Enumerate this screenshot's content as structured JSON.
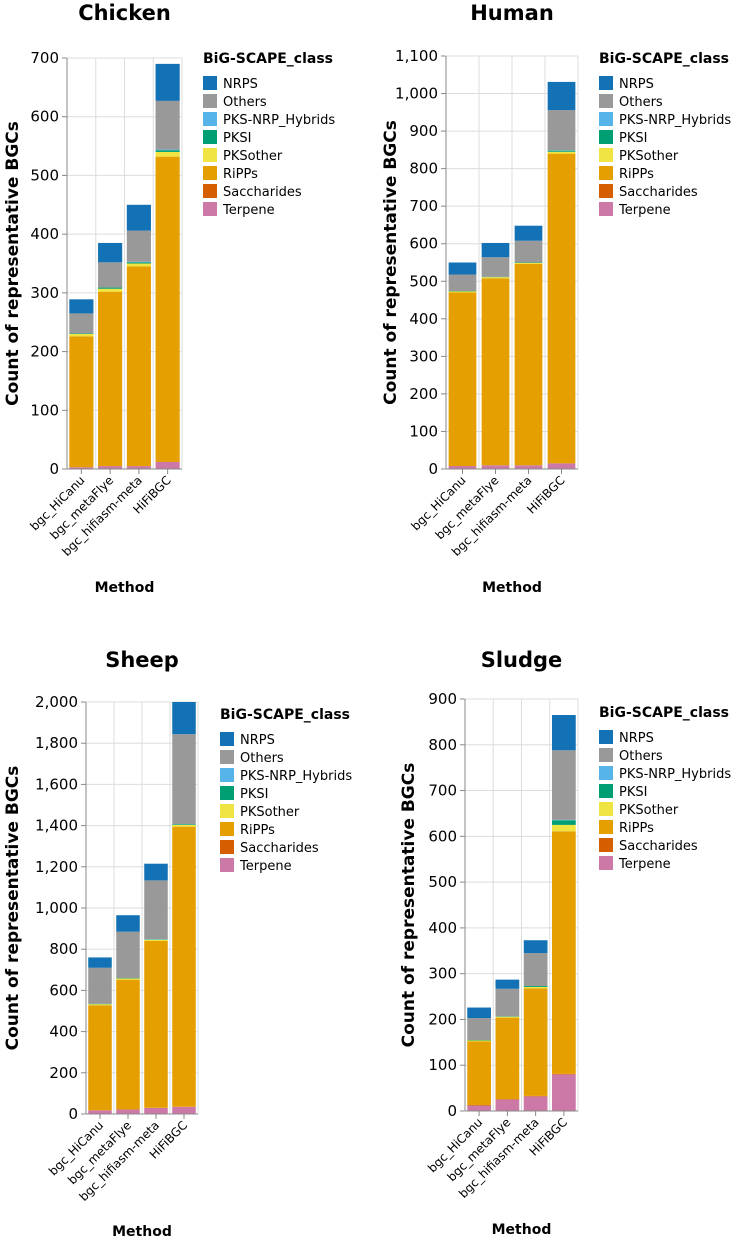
{
  "chart_data": [
    {
      "type": "bar",
      "stacked": true,
      "title": "Chicken",
      "xlabel": "Method",
      "ylabel": "Count of representative BGCs",
      "ylim": [
        0,
        700
      ],
      "yticks": [
        0,
        100,
        200,
        300,
        400,
        500,
        600,
        700
      ],
      "ytick_labels": [
        "0",
        "100",
        "200",
        "300",
        "400",
        "500",
        "600",
        "700"
      ],
      "categories": [
        "bgc_HiCanu",
        "bgc_metaFlye",
        "bgc_hifiasm-meta",
        "HiFiBGC"
      ],
      "legend_title": "BiG-SCAPE_class",
      "series": [
        {
          "name": "Terpene",
          "values": [
            3,
            5,
            5,
            12
          ]
        },
        {
          "name": "Saccharides",
          "values": [
            0,
            0,
            0,
            0
          ]
        },
        {
          "name": "RiPPs",
          "values": [
            223,
            297,
            340,
            520
          ]
        },
        {
          "name": "PKSother",
          "values": [
            4,
            5,
            5,
            8
          ]
        },
        {
          "name": "PKSI",
          "values": [
            1,
            2,
            2,
            3
          ]
        },
        {
          "name": "PKS-NRP_Hybrids",
          "values": [
            0,
            0,
            1,
            1
          ]
        },
        {
          "name": "Others",
          "values": [
            34,
            43,
            53,
            83
          ]
        },
        {
          "name": "NRPS",
          "values": [
            24,
            33,
            44,
            63
          ]
        }
      ]
    },
    {
      "type": "bar",
      "stacked": true,
      "title": "Human",
      "xlabel": "Method",
      "ylabel": "Count of representative BGCs",
      "ylim": [
        0,
        1100
      ],
      "yticks": [
        0,
        100,
        200,
        300,
        400,
        500,
        600,
        700,
        800,
        900,
        1000,
        1100
      ],
      "ytick_labels": [
        "0",
        "100",
        "200",
        "300",
        "400",
        "500",
        "600",
        "700",
        "800",
        "900",
        "1,000",
        "1,100"
      ],
      "categories": [
        "bgc_HiCanu",
        "bgc_metaFlye",
        "bgc_hifiasm-meta",
        "HiFiBGC"
      ],
      "legend_title": "BiG-SCAPE_class",
      "series": [
        {
          "name": "Terpene",
          "values": [
            8,
            10,
            10,
            15
          ]
        },
        {
          "name": "Saccharides",
          "values": [
            0,
            0,
            0,
            0
          ]
        },
        {
          "name": "RiPPs",
          "values": [
            462,
            498,
            536,
            825
          ]
        },
        {
          "name": "PKSother",
          "values": [
            3,
            3,
            3,
            5
          ]
        },
        {
          "name": "PKSI",
          "values": [
            1,
            1,
            1,
            3
          ]
        },
        {
          "name": "PKS-NRP_Hybrids",
          "values": [
            0,
            0,
            0,
            1
          ]
        },
        {
          "name": "Others",
          "values": [
            44,
            52,
            58,
            107
          ]
        },
        {
          "name": "NRPS",
          "values": [
            32,
            38,
            40,
            75
          ]
        }
      ]
    },
    {
      "type": "bar",
      "stacked": true,
      "title": "Sheep",
      "xlabel": "Method",
      "ylabel": "Count of representative BGCs",
      "ylim": [
        0,
        2000
      ],
      "yticks": [
        0,
        200,
        400,
        600,
        800,
        1000,
        1200,
        1400,
        1600,
        1800,
        2000
      ],
      "ytick_labels": [
        "0",
        "200",
        "400",
        "600",
        "800",
        "1,000",
        "1,200",
        "1,400",
        "1,600",
        "1,800",
        "2,000"
      ],
      "categories": [
        "bgc_HiCanu",
        "bgc_metaFlye",
        "bgc_hifiasm-meta",
        "HiFiBGC"
      ],
      "legend_title": "BiG-SCAPE_class",
      "series": [
        {
          "name": "Terpene",
          "values": [
            18,
            22,
            30,
            35
          ]
        },
        {
          "name": "Saccharides",
          "values": [
            0,
            0,
            0,
            0
          ]
        },
        {
          "name": "RiPPs",
          "values": [
            510,
            630,
            810,
            1360
          ]
        },
        {
          "name": "PKSother",
          "values": [
            5,
            6,
            6,
            8
          ]
        },
        {
          "name": "PKSI",
          "values": [
            2,
            2,
            2,
            3
          ]
        },
        {
          "name": "PKS-NRP_Hybrids",
          "values": [
            0,
            0,
            1,
            1
          ]
        },
        {
          "name": "Others",
          "values": [
            175,
            225,
            285,
            437
          ]
        },
        {
          "name": "NRPS",
          "values": [
            50,
            80,
            81,
            156
          ]
        }
      ]
    },
    {
      "type": "bar",
      "stacked": true,
      "title": "Sludge",
      "xlabel": "Method",
      "ylabel": "Count of representative BGCs",
      "ylim": [
        0,
        900
      ],
      "yticks": [
        0,
        100,
        200,
        300,
        400,
        500,
        600,
        700,
        800,
        900
      ],
      "ytick_labels": [
        "0",
        "100",
        "200",
        "300",
        "400",
        "500",
        "600",
        "700",
        "800",
        "900"
      ],
      "categories": [
        "bgc_HiCanu",
        "bgc_metaFlye",
        "bgc_hifiasm-meta",
        "HiFiBGC"
      ],
      "legend_title": "BiG-SCAPE_class",
      "series": [
        {
          "name": "Terpene",
          "values": [
            12,
            25,
            32,
            80
          ]
        },
        {
          "name": "Saccharides",
          "values": [
            1,
            1,
            1,
            1
          ]
        },
        {
          "name": "RiPPs",
          "values": [
            139,
            178,
            235,
            530
          ]
        },
        {
          "name": "PKSother",
          "values": [
            2,
            2,
            3,
            14
          ]
        },
        {
          "name": "PKSI",
          "values": [
            1,
            1,
            2,
            10
          ]
        },
        {
          "name": "PKS-NRP_Hybrids",
          "values": [
            0,
            0,
            0,
            1
          ]
        },
        {
          "name": "Others",
          "values": [
            48,
            60,
            72,
            152
          ]
        },
        {
          "name": "NRPS",
          "values": [
            23,
            20,
            28,
            77
          ]
        }
      ]
    }
  ],
  "legend_order": [
    "NRPS",
    "Others",
    "PKS-NRP_Hybrids",
    "PKSI",
    "PKSother",
    "RiPPs",
    "Saccharides",
    "Terpene"
  ],
  "colors": {
    "NRPS": "#1272b5",
    "Others": "#999999",
    "PKS-NRP_Hybrids": "#56b4e9",
    "PKSI": "#009e73",
    "PKSother": "#f0e442",
    "RiPPs": "#e69f00",
    "Saccharides": "#d55e00",
    "Terpene": "#cc79a7"
  }
}
